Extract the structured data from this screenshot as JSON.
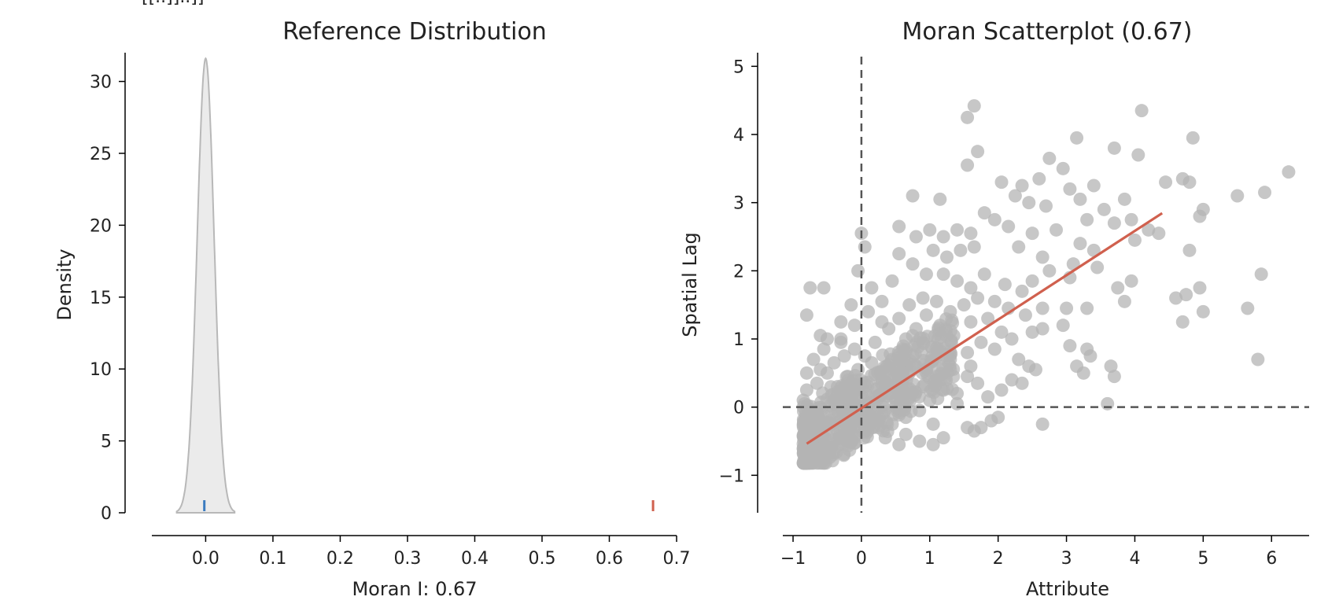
{
  "header_fragment": "[[..]]..]]",
  "chart_data": [
    {
      "type": "area",
      "title": "Reference Distribution",
      "xlabel": "Moran I: 0.67",
      "ylabel": "Density",
      "xlim": [
        -0.08,
        0.7
      ],
      "ylim": [
        0,
        32
      ],
      "x_ticks": [
        "0.0",
        "0.1",
        "0.2",
        "0.3",
        "0.4",
        "0.5",
        "0.6",
        "0.7"
      ],
      "y_ticks": [
        "0",
        "5",
        "10",
        "15",
        "20",
        "25",
        "30"
      ],
      "kde_mean": 0.0,
      "kde_sd": 0.0126,
      "kde_peak": 31.6,
      "kde_support": [
        -0.043,
        0.043
      ],
      "expected_I": -0.002,
      "observed_I": 0.665,
      "fill_color": "#ebebeb",
      "expected_color": "#3b7bbf",
      "observed_color": "#d0604e",
      "grid": false
    },
    {
      "type": "scatter",
      "title": "Moran Scatterplot (0.67)",
      "xlabel": "Attribute",
      "ylabel": "Spatial Lag",
      "xlim": [
        -1.15,
        6.55
      ],
      "ylim": [
        -1.55,
        5.2
      ],
      "x_ticks": [
        "−1",
        "0",
        "1",
        "2",
        "3",
        "4",
        "5",
        "6"
      ],
      "y_ticks": [
        "−1",
        "0",
        "1",
        "2",
        "3",
        "4",
        "5"
      ],
      "fit_slope": 0.67,
      "fit_x_range": [
        -0.8,
        4.4
      ],
      "point_color": "#b4b4b4",
      "fit_color": "#d0604e",
      "grid": false,
      "points": [
        [
          1.55,
          4.25
        ],
        [
          1.65,
          4.42
        ],
        [
          1.7,
          3.75
        ],
        [
          1.55,
          3.55
        ],
        [
          4.1,
          4.35
        ],
        [
          4.85,
          3.95
        ],
        [
          3.15,
          3.95
        ],
        [
          2.75,
          3.65
        ],
        [
          3.7,
          3.8
        ],
        [
          4.05,
          3.7
        ],
        [
          6.25,
          3.45
        ],
        [
          3.4,
          3.25
        ],
        [
          4.45,
          3.3
        ],
        [
          4.7,
          3.35
        ],
        [
          4.8,
          3.3
        ],
        [
          5.9,
          3.15
        ],
        [
          5.5,
          3.1
        ],
        [
          5.0,
          2.9
        ],
        [
          4.95,
          2.8
        ],
        [
          1.15,
          3.05
        ],
        [
          0.75,
          3.1
        ],
        [
          2.05,
          3.3
        ],
        [
          2.35,
          3.25
        ],
        [
          2.6,
          3.35
        ],
        [
          2.95,
          3.5
        ],
        [
          3.05,
          3.2
        ],
        [
          3.2,
          3.05
        ],
        [
          2.45,
          3.0
        ],
        [
          2.25,
          3.1
        ],
        [
          2.7,
          2.95
        ],
        [
          3.55,
          2.9
        ],
        [
          3.85,
          3.05
        ],
        [
          3.95,
          2.75
        ],
        [
          4.2,
          2.6
        ],
        [
          4.35,
          2.55
        ],
        [
          4.0,
          2.45
        ],
        [
          3.7,
          2.7
        ],
        [
          3.3,
          2.75
        ],
        [
          1.8,
          2.85
        ],
        [
          1.95,
          2.75
        ],
        [
          2.15,
          2.65
        ],
        [
          2.5,
          2.55
        ],
        [
          2.85,
          2.6
        ],
        [
          3.2,
          2.4
        ],
        [
          3.4,
          2.3
        ],
        [
          3.1,
          2.1
        ],
        [
          2.65,
          2.2
        ],
        [
          2.3,
          2.35
        ],
        [
          1.6,
          2.55
        ],
        [
          1.4,
          2.6
        ],
        [
          1.2,
          2.5
        ],
        [
          1.0,
          2.6
        ],
        [
          0.8,
          2.5
        ],
        [
          1.65,
          2.35
        ],
        [
          1.45,
          2.3
        ],
        [
          1.25,
          2.2
        ],
        [
          1.05,
          2.3
        ],
        [
          0.55,
          2.65
        ],
        [
          0.0,
          2.55
        ],
        [
          0.05,
          2.35
        ],
        [
          -0.05,
          2.0
        ],
        [
          0.15,
          1.75
        ],
        [
          0.55,
          2.25
        ],
        [
          0.75,
          2.1
        ],
        [
          0.95,
          1.95
        ],
        [
          1.2,
          1.95
        ],
        [
          1.4,
          1.85
        ],
        [
          1.6,
          1.75
        ],
        [
          1.8,
          1.95
        ],
        [
          2.1,
          1.8
        ],
        [
          2.35,
          1.7
        ],
        [
          2.5,
          1.85
        ],
        [
          2.75,
          2.0
        ],
        [
          3.05,
          1.9
        ],
        [
          3.45,
          2.05
        ],
        [
          3.75,
          1.75
        ],
        [
          3.95,
          1.85
        ],
        [
          4.8,
          2.3
        ],
        [
          5.85,
          1.95
        ],
        [
          4.95,
          1.75
        ],
        [
          4.6,
          1.6
        ],
        [
          4.75,
          1.65
        ],
        [
          5.65,
          1.45
        ],
        [
          3.85,
          1.55
        ],
        [
          3.3,
          1.45
        ],
        [
          3.0,
          1.45
        ],
        [
          2.65,
          1.45
        ],
        [
          2.4,
          1.35
        ],
        [
          2.15,
          1.45
        ],
        [
          2.5,
          1.1
        ],
        [
          2.65,
          1.15
        ],
        [
          2.95,
          1.2
        ],
        [
          4.7,
          1.25
        ],
        [
          5.0,
          1.4
        ],
        [
          5.8,
          0.7
        ],
        [
          3.05,
          0.9
        ],
        [
          3.3,
          0.85
        ],
        [
          3.35,
          0.75
        ],
        [
          3.65,
          0.6
        ],
        [
          3.7,
          0.45
        ],
        [
          3.15,
          0.6
        ],
        [
          3.25,
          0.5
        ],
        [
          2.3,
          0.7
        ],
        [
          2.45,
          0.6
        ],
        [
          2.55,
          0.55
        ],
        [
          2.2,
          0.4
        ],
        [
          2.35,
          0.35
        ],
        [
          2.05,
          0.25
        ],
        [
          1.85,
          0.15
        ],
        [
          1.7,
          0.35
        ],
        [
          1.55,
          0.45
        ],
        [
          1.4,
          0.2
        ],
        [
          3.6,
          0.05
        ],
        [
          2.65,
          -0.25
        ],
        [
          2.0,
          -0.15
        ],
        [
          1.9,
          -0.2
        ],
        [
          1.75,
          -0.3
        ],
        [
          1.65,
          -0.35
        ],
        [
          1.55,
          -0.3
        ],
        [
          1.2,
          -0.45
        ],
        [
          1.05,
          -0.55
        ],
        [
          0.85,
          -0.5
        ],
        [
          0.65,
          -0.4
        ],
        [
          0.55,
          -0.55
        ],
        [
          0.35,
          -0.45
        ],
        [
          -0.75,
          1.75
        ],
        [
          -0.55,
          1.75
        ],
        [
          -0.8,
          1.35
        ],
        [
          -0.6,
          1.05
        ],
        [
          -0.5,
          1.0
        ],
        [
          -0.3,
          0.95
        ],
        [
          -0.1,
          0.85
        ],
        [
          0.05,
          0.75
        ],
        [
          0.2,
          0.95
        ],
        [
          0.4,
          1.15
        ],
        [
          0.55,
          1.3
        ],
        [
          0.7,
          1.5
        ],
        [
          0.9,
          1.6
        ],
        [
          1.1,
          1.55
        ],
        [
          1.3,
          1.4
        ],
        [
          1.5,
          1.5
        ],
        [
          1.7,
          1.6
        ],
        [
          1.95,
          1.55
        ],
        [
          0.3,
          1.55
        ],
        [
          0.1,
          1.4
        ],
        [
          -0.15,
          1.5
        ],
        [
          -0.3,
          1.25
        ],
        [
          0.45,
          1.85
        ],
        [
          0.95,
          1.35
        ],
        [
          1.15,
          1.2
        ],
        [
          1.35,
          1.05
        ],
        [
          1.6,
          1.25
        ],
        [
          1.85,
          1.3
        ],
        [
          2.05,
          1.1
        ],
        [
          2.2,
          1.0
        ],
        [
          1.95,
          0.85
        ],
        [
          1.75,
          0.95
        ],
        [
          1.55,
          0.8
        ],
        [
          1.3,
          0.7
        ],
        [
          1.15,
          0.85
        ],
        [
          0.9,
          0.95
        ],
        [
          0.65,
          1.0
        ],
        [
          0.45,
          0.7
        ],
        [
          0.25,
          0.5
        ],
        [
          0.05,
          0.3
        ],
        [
          -0.15,
          0.15
        ],
        [
          -0.35,
          -0.05
        ],
        [
          -0.55,
          -0.25
        ],
        [
          -0.7,
          -0.45
        ],
        [
          -0.8,
          -0.6
        ],
        [
          -0.75,
          -0.75
        ],
        [
          -0.6,
          -0.7
        ],
        [
          -0.45,
          -0.6
        ],
        [
          -0.3,
          -0.5
        ],
        [
          -0.15,
          -0.4
        ],
        [
          0.0,
          -0.3
        ],
        [
          0.15,
          -0.2
        ],
        [
          0.3,
          -0.1
        ],
        [
          0.5,
          0.0
        ],
        [
          0.7,
          0.15
        ],
        [
          0.9,
          0.3
        ],
        [
          1.1,
          0.45
        ],
        [
          1.3,
          0.55
        ],
        [
          -0.8,
          0.0
        ],
        [
          -0.8,
          0.25
        ],
        [
          -0.8,
          0.5
        ],
        [
          -0.8,
          -0.25
        ],
        [
          -0.65,
          0.35
        ],
        [
          -0.5,
          0.5
        ],
        [
          -0.35,
          0.3
        ],
        [
          -0.2,
          0.45
        ],
        [
          -0.05,
          0.55
        ],
        [
          0.1,
          0.05
        ],
        [
          0.25,
          -0.3
        ],
        [
          0.4,
          0.2
        ],
        [
          0.6,
          0.4
        ],
        [
          0.8,
          0.6
        ],
        [
          1.0,
          0.1
        ],
        [
          1.2,
          0.25
        ],
        [
          -0.7,
          0.7
        ],
        [
          -0.55,
          0.85
        ],
        [
          -0.4,
          0.65
        ],
        [
          -0.25,
          0.75
        ],
        [
          -0.85,
          0.1
        ],
        [
          -0.65,
          -0.1
        ],
        [
          -0.45,
          -0.2
        ],
        [
          -0.25,
          -0.1
        ],
        [
          -0.1,
          0.0
        ],
        [
          0.05,
          -0.15
        ],
        [
          0.2,
          0.15
        ],
        [
          0.35,
          0.35
        ],
        [
          0.55,
          0.55
        ],
        [
          0.75,
          0.75
        ],
        [
          0.95,
          0.55
        ],
        [
          -0.75,
          -0.35
        ],
        [
          -0.55,
          -0.45
        ],
        [
          -0.35,
          -0.35
        ],
        [
          -0.15,
          -0.25
        ],
        [
          0.45,
          -0.25
        ],
        [
          0.65,
          -0.15
        ],
        [
          0.85,
          -0.05
        ],
        [
          1.05,
          -0.25
        ],
        [
          -0.3,
          1.0
        ],
        [
          0.6,
          0.85
        ],
        [
          0.8,
          1.15
        ],
        [
          -0.6,
          0.55
        ],
        [
          -0.4,
          0.1
        ],
        [
          0.15,
          0.65
        ],
        [
          1.4,
          0.05
        ],
        [
          1.6,
          0.6
        ],
        [
          -0.1,
          1.2
        ],
        [
          0.3,
          1.25
        ]
      ]
    }
  ]
}
